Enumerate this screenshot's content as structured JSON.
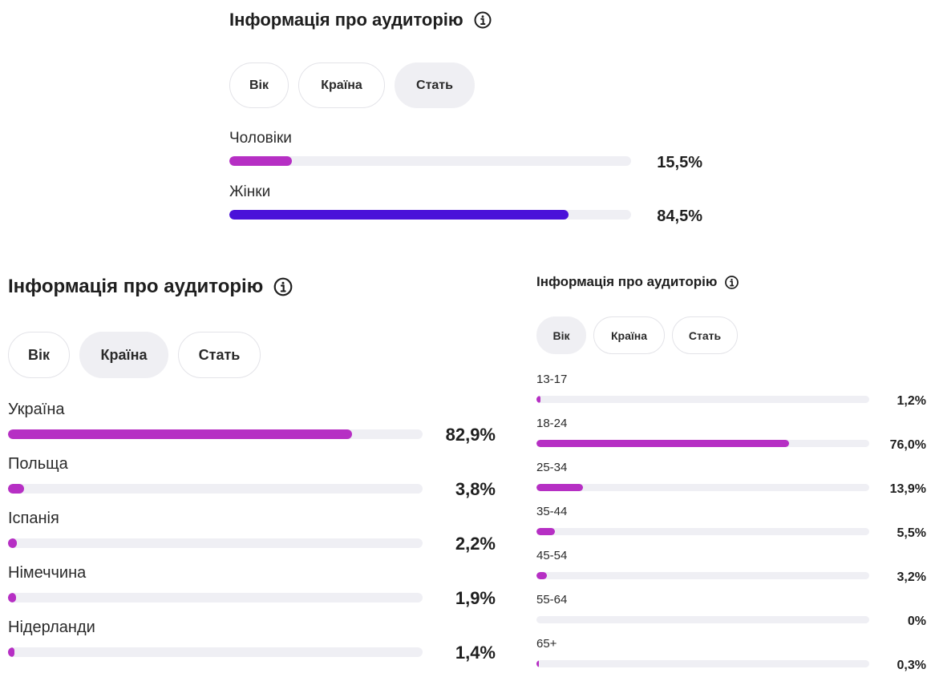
{
  "colors": {
    "bar_magenta": "#b62fc4",
    "bar_indigo": "#4a12d9",
    "track": "#efeff4",
    "tab_active_bg": "#efeff3"
  },
  "gender_panel": {
    "title": "Інформація про аудиторію",
    "tabs": [
      {
        "label": "Вік",
        "active": false
      },
      {
        "label": "Країна",
        "active": false
      },
      {
        "label": "Стать",
        "active": true
      }
    ],
    "rows": [
      {
        "label": "Чоловіки",
        "percent_text": "15,5%",
        "value": 15.5,
        "color": "#b62fc4"
      },
      {
        "label": "Жінки",
        "percent_text": "84,5%",
        "value": 84.5,
        "color": "#4a12d9"
      }
    ]
  },
  "country_panel": {
    "title": "Інформація про аудиторію",
    "tabs": [
      {
        "label": "Вік",
        "active": false
      },
      {
        "label": "Країна",
        "active": true
      },
      {
        "label": "Стать",
        "active": false
      }
    ],
    "rows": [
      {
        "label": "Україна",
        "percent_text": "82,9%",
        "value": 82.9
      },
      {
        "label": "Польща",
        "percent_text": "3,8%",
        "value": 3.8
      },
      {
        "label": "Іспанія",
        "percent_text": "2,2%",
        "value": 2.2
      },
      {
        "label": "Німеччина",
        "percent_text": "1,9%",
        "value": 1.9
      },
      {
        "label": "Нідерланди",
        "percent_text": "1,4%",
        "value": 1.4
      }
    ]
  },
  "age_panel": {
    "title": "Інформація про аудиторію",
    "tabs": [
      {
        "label": "Вік",
        "active": true
      },
      {
        "label": "Країна",
        "active": false
      },
      {
        "label": "Стать",
        "active": false
      }
    ],
    "rows": [
      {
        "label": "13-17",
        "percent_text": "1,2%",
        "value": 1.2
      },
      {
        "label": "18-24",
        "percent_text": "76,0%",
        "value": 76.0
      },
      {
        "label": "25-34",
        "percent_text": "13,9%",
        "value": 13.9
      },
      {
        "label": "35-44",
        "percent_text": "5,5%",
        "value": 5.5
      },
      {
        "label": "45-54",
        "percent_text": "3,2%",
        "value": 3.2
      },
      {
        "label": "55-64",
        "percent_text": "0%",
        "value": 0
      },
      {
        "label": "65+",
        "percent_text": "0,3%",
        "value": 0.3
      }
    ]
  }
}
